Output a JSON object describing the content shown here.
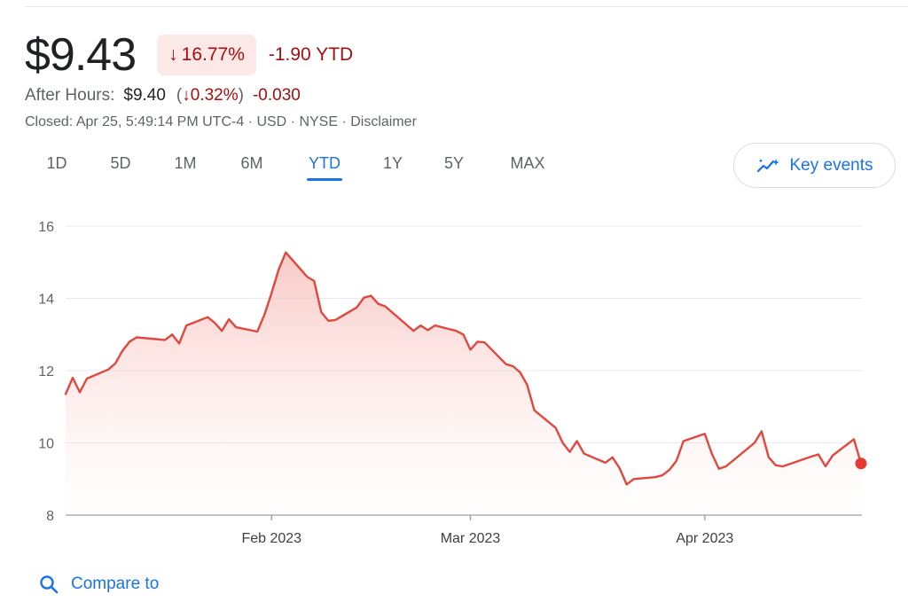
{
  "quote": {
    "price": "$9.43",
    "pct_change": "16.77%",
    "ytd_change": "-1.90 YTD",
    "down_color": "#a50e0e",
    "after_hours_label": "After Hours:",
    "after_hours_price": "$9.40",
    "after_hours_pct": "0.32%",
    "after_hours_change": "-0.030",
    "closed_line": "Closed: Apr 25, 5:49:14 PM UTC-4 · USD · NYSE · Disclaimer"
  },
  "ranges": {
    "items": [
      "1D",
      "5D",
      "1M",
      "6M",
      "YTD",
      "1Y",
      "5Y",
      "MAX"
    ],
    "selected": "YTD",
    "accent_color": "#1a73e8"
  },
  "key_events": {
    "label": "Key events",
    "icon": "trend-sparkle-icon"
  },
  "compare": {
    "label": "Compare to",
    "icon": "search-icon"
  },
  "chart_data": {
    "type": "area",
    "ylim": [
      8,
      16
    ],
    "yticks": [
      8,
      10,
      12,
      14,
      16
    ],
    "xticks": [
      {
        "label": "Feb 2023",
        "x": "2023-02-01"
      },
      {
        "label": "Mar 2023",
        "x": "2023-03-01"
      },
      {
        "label": "Apr 2023",
        "x": "2023-04-03"
      }
    ],
    "xlim": [
      "2023-01-03",
      "2023-04-25"
    ],
    "grid": true,
    "line_color": "#e0483e",
    "series": [
      {
        "points": [
          [
            "2023-01-03",
            11.35
          ],
          [
            "2023-01-04",
            11.8
          ],
          [
            "2023-01-05",
            11.4
          ],
          [
            "2023-01-06",
            11.78
          ],
          [
            "2023-01-09",
            12.03
          ],
          [
            "2023-01-10",
            12.2
          ],
          [
            "2023-01-11",
            12.55
          ],
          [
            "2023-01-12",
            12.8
          ],
          [
            "2023-01-13",
            12.92
          ],
          [
            "2023-01-17",
            12.85
          ],
          [
            "2023-01-18",
            13.0
          ],
          [
            "2023-01-19",
            12.75
          ],
          [
            "2023-01-20",
            13.25
          ],
          [
            "2023-01-23",
            13.48
          ],
          [
            "2023-01-24",
            13.32
          ],
          [
            "2023-01-25",
            13.1
          ],
          [
            "2023-01-26",
            13.42
          ],
          [
            "2023-01-27",
            13.2
          ],
          [
            "2023-01-30",
            13.08
          ],
          [
            "2023-01-31",
            13.55
          ],
          [
            "2023-02-01",
            14.15
          ],
          [
            "2023-02-02",
            14.8
          ],
          [
            "2023-02-03",
            15.27
          ],
          [
            "2023-02-06",
            14.6
          ],
          [
            "2023-02-07",
            14.48
          ],
          [
            "2023-02-08",
            13.62
          ],
          [
            "2023-02-09",
            13.38
          ],
          [
            "2023-02-10",
            13.4
          ],
          [
            "2023-02-13",
            13.75
          ],
          [
            "2023-02-14",
            14.02
          ],
          [
            "2023-02-15",
            14.07
          ],
          [
            "2023-02-16",
            13.85
          ],
          [
            "2023-02-17",
            13.78
          ],
          [
            "2023-02-21",
            13.1
          ],
          [
            "2023-02-22",
            13.25
          ],
          [
            "2023-02-23",
            13.12
          ],
          [
            "2023-02-24",
            13.25
          ],
          [
            "2023-02-27",
            13.1
          ],
          [
            "2023-02-28",
            13.0
          ],
          [
            "2023-03-01",
            12.58
          ],
          [
            "2023-03-02",
            12.8
          ],
          [
            "2023-03-03",
            12.78
          ],
          [
            "2023-03-06",
            12.18
          ],
          [
            "2023-03-07",
            12.12
          ],
          [
            "2023-03-08",
            11.95
          ],
          [
            "2023-03-09",
            11.6
          ],
          [
            "2023-03-10",
            10.9
          ],
          [
            "2023-03-13",
            10.42
          ],
          [
            "2023-03-14",
            10.0
          ],
          [
            "2023-03-15",
            9.75
          ],
          [
            "2023-03-16",
            10.05
          ],
          [
            "2023-03-17",
            9.7
          ],
          [
            "2023-03-20",
            9.45
          ],
          [
            "2023-03-21",
            9.6
          ],
          [
            "2023-03-22",
            9.3
          ],
          [
            "2023-03-23",
            8.85
          ],
          [
            "2023-03-24",
            9.0
          ],
          [
            "2023-03-27",
            9.05
          ],
          [
            "2023-03-28",
            9.1
          ],
          [
            "2023-03-29",
            9.25
          ],
          [
            "2023-03-30",
            9.5
          ],
          [
            "2023-03-31",
            10.05
          ],
          [
            "2023-04-03",
            10.25
          ],
          [
            "2023-04-04",
            9.7
          ],
          [
            "2023-04-05",
            9.28
          ],
          [
            "2023-04-06",
            9.35
          ],
          [
            "2023-04-10",
            10.0
          ],
          [
            "2023-04-11",
            10.32
          ],
          [
            "2023-04-12",
            9.6
          ],
          [
            "2023-04-13",
            9.38
          ],
          [
            "2023-04-14",
            9.35
          ],
          [
            "2023-04-17",
            9.55
          ],
          [
            "2023-04-18",
            9.62
          ],
          [
            "2023-04-19",
            9.68
          ],
          [
            "2023-04-20",
            9.35
          ],
          [
            "2023-04-21",
            9.65
          ],
          [
            "2023-04-24",
            10.1
          ],
          [
            "2023-04-25",
            9.43
          ]
        ]
      }
    ]
  }
}
